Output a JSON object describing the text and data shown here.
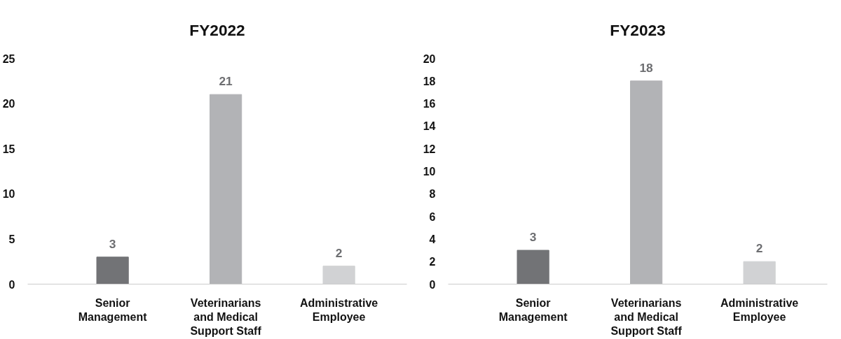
{
  "chart_data": [
    {
      "type": "bar",
      "title": "FY2022",
      "categories": [
        "Senior Management",
        "Veterinarians and Medical Support Staff",
        "Administrative Employee"
      ],
      "values": [
        3,
        21,
        2
      ],
      "colors": [
        "#727376",
        "#b2b3b6",
        "#d1d2d4"
      ],
      "ylim": [
        0,
        25
      ],
      "yticks": [
        0,
        5,
        10,
        15,
        20,
        25
      ],
      "data_labels": true,
      "grid": false
    },
    {
      "type": "bar",
      "title": "FY2023",
      "categories": [
        "Senior Management",
        "Veterinarians and Medical Support Staff",
        "Administrative Employee"
      ],
      "values": [
        3,
        18,
        2
      ],
      "colors": [
        "#727376",
        "#b2b3b6",
        "#d1d2d4"
      ],
      "ylim": [
        0,
        20
      ],
      "yticks": [
        0,
        2,
        4,
        6,
        8,
        10,
        12,
        14,
        16,
        18,
        20
      ],
      "data_labels": true,
      "grid": false
    }
  ]
}
